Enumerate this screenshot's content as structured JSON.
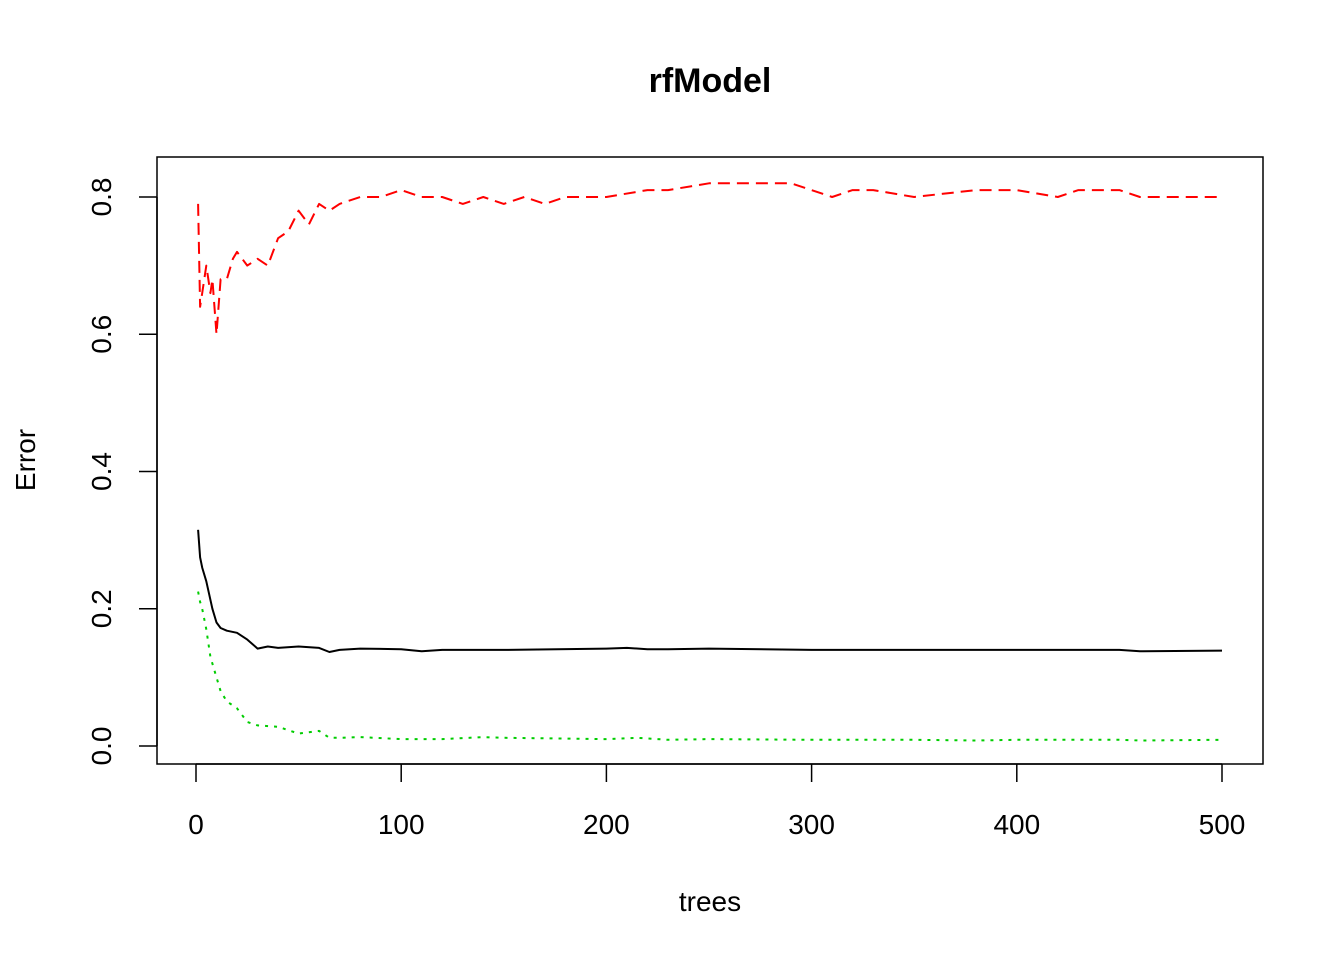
{
  "chart_data": {
    "type": "line",
    "title": "rfModel",
    "xlabel": "trees",
    "ylabel": "Error",
    "xlim": [
      0,
      500
    ],
    "ylim": [
      0,
      0.8
    ],
    "xticks": [
      0,
      100,
      200,
      300,
      400,
      500
    ],
    "xtick_labels": [
      "0",
      "100",
      "200",
      "300",
      "400",
      "500"
    ],
    "yticks": [
      0.0,
      0.2,
      0.4,
      0.6,
      0.8
    ],
    "ytick_labels": [
      "0.0",
      "0.2",
      "0.4",
      "0.6",
      "0.8"
    ],
    "grid": false,
    "legend": "none",
    "series": [
      {
        "color": "#000000",
        "line_style": "solid",
        "x": [
          1,
          2,
          3,
          5,
          8,
          10,
          12,
          15,
          20,
          25,
          30,
          35,
          40,
          50,
          60,
          65,
          70,
          80,
          100,
          110,
          120,
          150,
          200,
          210,
          220,
          230,
          250,
          300,
          350,
          400,
          450,
          460,
          500
        ],
        "values": [
          0.315,
          0.275,
          0.26,
          0.24,
          0.2,
          0.18,
          0.172,
          0.168,
          0.165,
          0.155,
          0.142,
          0.145,
          0.143,
          0.145,
          0.143,
          0.137,
          0.14,
          0.142,
          0.141,
          0.138,
          0.14,
          0.14,
          0.142,
          0.143,
          0.141,
          0.141,
          0.142,
          0.14,
          0.14,
          0.14,
          0.14,
          0.138,
          0.139
        ]
      },
      {
        "color": "#FF0000",
        "line_style": "dashed",
        "x": [
          1,
          2,
          3,
          5,
          7,
          8,
          10,
          12,
          15,
          18,
          20,
          25,
          30,
          35,
          40,
          45,
          50,
          55,
          60,
          65,
          70,
          80,
          90,
          100,
          110,
          120,
          130,
          140,
          150,
          160,
          170,
          180,
          200,
          220,
          230,
          250,
          270,
          280,
          290,
          300,
          310,
          320,
          330,
          350,
          380,
          400,
          420,
          430,
          450,
          460,
          480,
          500
        ],
        "values": [
          0.79,
          0.64,
          0.66,
          0.7,
          0.66,
          0.68,
          0.6,
          0.68,
          0.68,
          0.71,
          0.72,
          0.7,
          0.71,
          0.7,
          0.74,
          0.75,
          0.78,
          0.76,
          0.79,
          0.78,
          0.79,
          0.8,
          0.8,
          0.81,
          0.8,
          0.8,
          0.79,
          0.8,
          0.79,
          0.8,
          0.79,
          0.8,
          0.8,
          0.81,
          0.81,
          0.82,
          0.82,
          0.82,
          0.82,
          0.81,
          0.8,
          0.81,
          0.81,
          0.8,
          0.81,
          0.81,
          0.8,
          0.81,
          0.81,
          0.8,
          0.8,
          0.8
        ]
      },
      {
        "color": "#00CD00",
        "line_style": "dotted",
        "x": [
          1,
          2,
          3,
          5,
          7,
          10,
          12,
          15,
          20,
          25,
          30,
          40,
          50,
          60,
          65,
          70,
          80,
          100,
          120,
          140,
          150,
          200,
          215,
          230,
          250,
          300,
          350,
          380,
          400,
          450,
          460,
          500
        ],
        "values": [
          0.225,
          0.21,
          0.2,
          0.17,
          0.13,
          0.1,
          0.08,
          0.065,
          0.055,
          0.035,
          0.03,
          0.028,
          0.018,
          0.022,
          0.012,
          0.012,
          0.013,
          0.01,
          0.01,
          0.013,
          0.012,
          0.01,
          0.012,
          0.009,
          0.01,
          0.009,
          0.009,
          0.008,
          0.009,
          0.009,
          0.008,
          0.009
        ]
      }
    ]
  }
}
